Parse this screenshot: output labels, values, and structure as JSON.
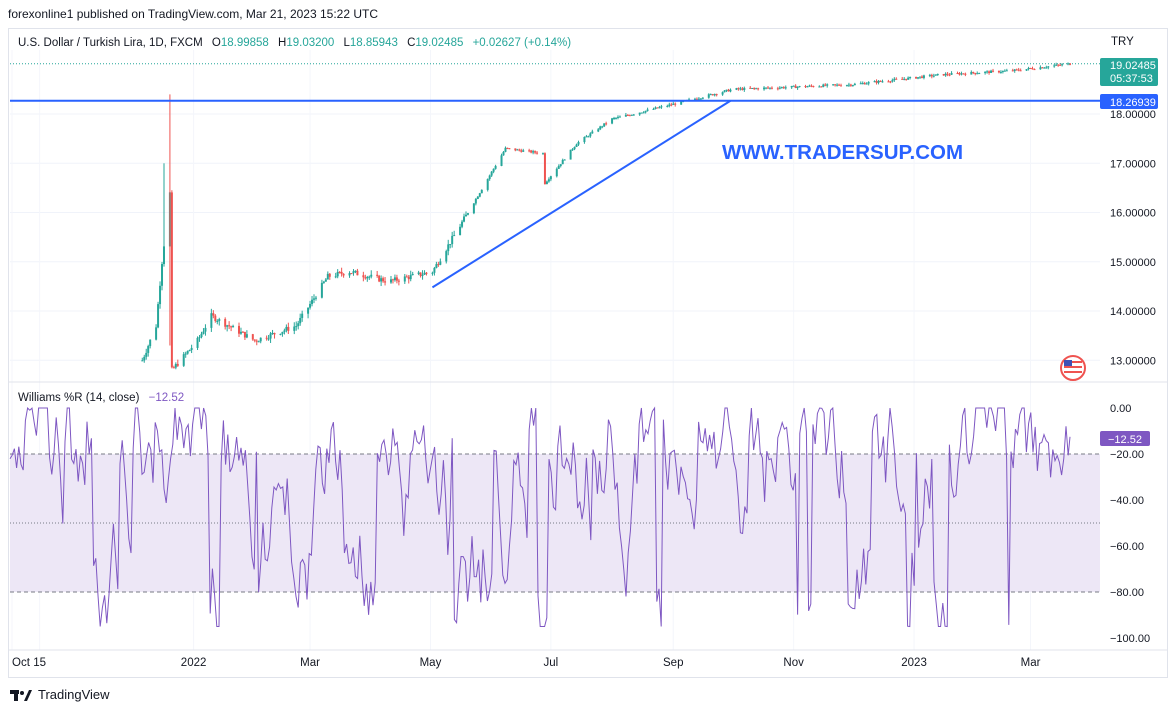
{
  "publisher": "forexonline1 published on TradingView.com, Mar 21, 2023 15:22 UTC",
  "header": {
    "symbol": "U.S. Dollar / Turkish Lira, 1D, FXCM",
    "o_label": "O",
    "o": "18.99858",
    "h_label": "H",
    "h": "19.03200",
    "l_label": "L",
    "l": "18.85943",
    "c_label": "C",
    "c": "19.02485",
    "change": "+0.02627 (+0.14%)",
    "currency": "TRY"
  },
  "watermark": "WWW.TRADERSUP.COM",
  "price_axis": {
    "ticks": [
      "18.00000",
      "17.00000",
      "16.00000",
      "15.00000",
      "14.00000",
      "13.00000"
    ],
    "last_price": "19.02485",
    "countdown": "05:37:53",
    "level_label": "18.26939"
  },
  "indicator": {
    "name": "Williams %R (14, close)",
    "value": "−12.52",
    "value_badge": "−12.52",
    "ticks": [
      "0.00",
      "−20.00",
      "−40.00",
      "−60.00",
      "−80.00",
      "−100.00"
    ]
  },
  "time_axis": [
    "Oct",
    "15",
    "2022",
    "Mar",
    "May",
    "Jul",
    "Sep",
    "Nov",
    "2023",
    "Mar"
  ],
  "footer": {
    "brand": "TradingView"
  },
  "colors": {
    "up": "#26a69a",
    "down": "#ef5350",
    "line": "#2962ff",
    "wr": "#7e57c2",
    "band": "#ede7f6"
  },
  "chart_data": {
    "type": "candlestick",
    "symbol": "USDTRY",
    "timeframe": "1D",
    "date_range": [
      "2021-10-01",
      "2023-03-21"
    ],
    "ylim": [
      12.6,
      19.3
    ],
    "horizontal_level": 18.26939,
    "trendline": {
      "from": {
        "date": "2022-05-02",
        "price": 14.48
      },
      "to": {
        "date": "2022-09-30",
        "price": 18.27
      }
    },
    "close_path": [
      {
        "date": "2021-12-06",
        "price": 13.0
      },
      {
        "date": "2021-12-13",
        "price": 13.7
      },
      {
        "date": "2021-12-16",
        "price": 15.0
      },
      {
        "date": "2021-12-20",
        "price": 16.4
      },
      {
        "date": "2021-12-21",
        "price": 12.8
      },
      {
        "date": "2022-01-03",
        "price": 13.4
      },
      {
        "date": "2022-01-10",
        "price": 13.9
      },
      {
        "date": "2022-02-01",
        "price": 13.4
      },
      {
        "date": "2022-02-22",
        "price": 13.7
      },
      {
        "date": "2022-03-10",
        "price": 14.7
      },
      {
        "date": "2022-03-21",
        "price": 14.8
      },
      {
        "date": "2022-04-10",
        "price": 14.6
      },
      {
        "date": "2022-05-02",
        "price": 14.8
      },
      {
        "date": "2022-05-20",
        "price": 16.0
      },
      {
        "date": "2022-06-08",
        "price": 17.3
      },
      {
        "date": "2022-06-27",
        "price": 17.2
      },
      {
        "date": "2022-06-28",
        "price": 16.6
      },
      {
        "date": "2022-07-14",
        "price": 17.4
      },
      {
        "date": "2022-08-01",
        "price": 17.9
      },
      {
        "date": "2022-09-01",
        "price": 18.2
      },
      {
        "date": "2022-10-01",
        "price": 18.5
      },
      {
        "date": "2022-11-01",
        "price": 18.55
      },
      {
        "date": "2022-12-01",
        "price": 18.6
      },
      {
        "date": "2023-01-15",
        "price": 18.8
      },
      {
        "date": "2023-02-20",
        "price": 18.88
      },
      {
        "date": "2023-03-21",
        "price": 19.02
      }
    ],
    "williams_r": {
      "period": 14,
      "bands": [
        -20,
        -50,
        -80
      ],
      "ylim": [
        -100,
        0
      ],
      "last": -12.52
    }
  }
}
